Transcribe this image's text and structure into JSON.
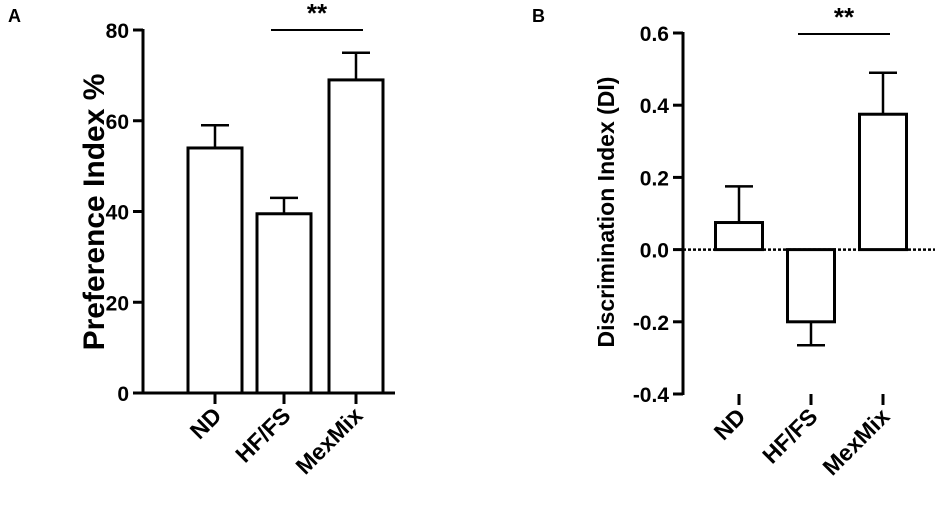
{
  "chart_data": [
    {
      "panel": "A",
      "type": "bar",
      "categories": [
        "ND",
        "HF/FS",
        "MexMix"
      ],
      "values": [
        54,
        39.5,
        69
      ],
      "errors": [
        5,
        3.5,
        6
      ],
      "ylabel": "Preference Index %",
      "xlabel": "",
      "ylim": [
        0,
        80
      ],
      "yticks": [
        "0",
        "20",
        "40",
        "60",
        "80"
      ],
      "significance": {
        "label": "**",
        "from": "HF/FS",
        "to": "MexMix"
      },
      "grid": false,
      "legend": "none"
    },
    {
      "panel": "B",
      "type": "bar",
      "categories": [
        "ND",
        "HF/FS",
        "MexMix"
      ],
      "values": [
        0.075,
        -0.2,
        0.375
      ],
      "errors": [
        0.1,
        0.065,
        0.115
      ],
      "ylabel": "Discrimination Index (DI)",
      "xlabel": "",
      "ylim": [
        -0.4,
        0.6
      ],
      "yticks": [
        "-0.4",
        "-0.2",
        "0.0",
        "0.2",
        "0.4",
        "0.6"
      ],
      "significance": {
        "label": "**",
        "from": "HF/FS",
        "to": "MexMix"
      },
      "zero_line": "dashed",
      "grid": false,
      "legend": "none"
    }
  ]
}
